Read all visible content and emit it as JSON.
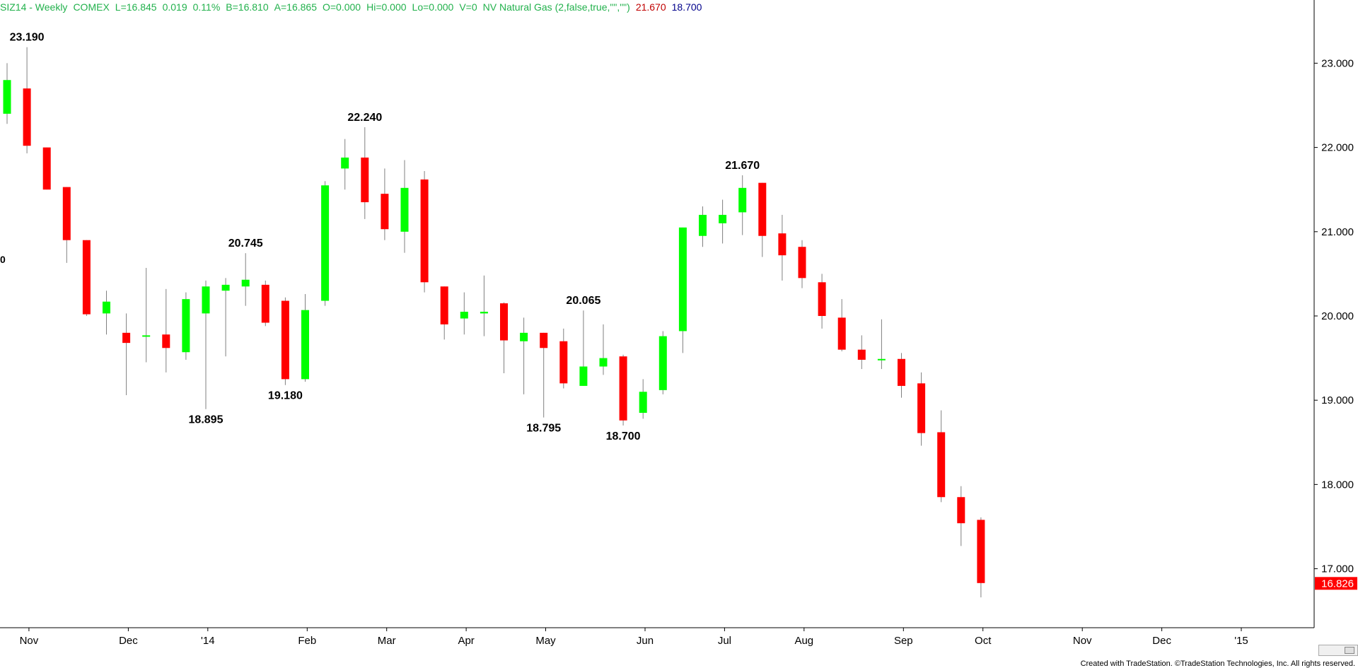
{
  "header": {
    "symbol": "SIZ14 - Weekly",
    "exchange": "COMEX",
    "last": "L=16.845",
    "change": "0.019",
    "change_pct": "0.11%",
    "bid": "B=16.810",
    "ask": "A=16.865",
    "open": "O=0.000",
    "hi": "Hi=0.000",
    "lo": "Lo=0.000",
    "vol": "V=0",
    "indicator": "NV Natural Gas (2,false,true,\"\",\"\")",
    "ind_high": "21.670",
    "ind_low": "18.700",
    "left_edge_label": "0"
  },
  "footer": {
    "text": "Created with TradeStation. ©TradeStation Technologies, Inc. All rights reserved."
  },
  "colors": {
    "up": "#00ff00",
    "down": "#ff0000",
    "wick": "#808080",
    "last_price_bg": "#ff0000"
  },
  "chart_data": {
    "type": "candlestick",
    "ylim": [
      16.3,
      23.75
    ],
    "y_ticks": [
      "23.000",
      "22.000",
      "21.000",
      "20.000",
      "19.000",
      "18.000",
      "17.000"
    ],
    "y_tick_values": [
      23,
      22,
      21,
      20,
      19,
      18,
      17
    ],
    "x_ticks": [
      {
        "label": "Nov",
        "i": 1.1
      },
      {
        "label": "Dec",
        "i": 6.1
      },
      {
        "label": "'14",
        "i": 10.1
      },
      {
        "label": "Feb",
        "i": 15.1
      },
      {
        "label": "Mar",
        "i": 19.1
      },
      {
        "label": "Apr",
        "i": 23.1
      },
      {
        "label": "May",
        "i": 27.1
      },
      {
        "label": "Jun",
        "i": 32.1
      },
      {
        "label": "Jul",
        "i": 36.1
      },
      {
        "label": "Aug",
        "i": 40.1
      },
      {
        "label": "Sep",
        "i": 45.1
      },
      {
        "label": "Oct",
        "i": 49.1
      },
      {
        "label": "Nov",
        "i": 54.1
      },
      {
        "label": "Dec",
        "i": 58.1
      },
      {
        "label": "'15",
        "i": 62.1
      }
    ],
    "candles": [
      {
        "o": 22.4,
        "h": 23.0,
        "l": 22.28,
        "c": 22.8
      },
      {
        "o": 22.7,
        "h": 23.19,
        "l": 21.93,
        "c": 22.02
      },
      {
        "o": 22.0,
        "h": 22.0,
        "l": 21.5,
        "c": 21.5
      },
      {
        "o": 21.53,
        "h": 21.53,
        "l": 20.63,
        "c": 20.9
      },
      {
        "o": 20.9,
        "h": 20.9,
        "l": 20.0,
        "c": 20.02
      },
      {
        "o": 20.03,
        "h": 20.3,
        "l": 19.78,
        "c": 20.17
      },
      {
        "o": 19.8,
        "h": 20.03,
        "l": 19.06,
        "c": 19.68
      },
      {
        "o": 19.77,
        "h": 20.57,
        "l": 19.45,
        "c": 19.77
      },
      {
        "o": 19.78,
        "h": 20.32,
        "l": 19.33,
        "c": 19.62
      },
      {
        "o": 19.57,
        "h": 20.28,
        "l": 19.48,
        "c": 20.2
      },
      {
        "o": 20.03,
        "h": 20.42,
        "l": 18.895,
        "c": 20.35
      },
      {
        "o": 20.3,
        "h": 20.45,
        "l": 19.52,
        "c": 20.37
      },
      {
        "o": 20.35,
        "h": 20.745,
        "l": 20.12,
        "c": 20.43
      },
      {
        "o": 20.37,
        "h": 20.42,
        "l": 19.88,
        "c": 19.92
      },
      {
        "o": 20.18,
        "h": 20.22,
        "l": 19.18,
        "c": 19.25
      },
      {
        "o": 19.25,
        "h": 20.26,
        "l": 19.22,
        "c": 20.07
      },
      {
        "o": 20.18,
        "h": 21.6,
        "l": 20.12,
        "c": 21.55
      },
      {
        "o": 21.75,
        "h": 22.1,
        "l": 21.5,
        "c": 21.88
      },
      {
        "o": 21.88,
        "h": 22.24,
        "l": 21.15,
        "c": 21.35
      },
      {
        "o": 21.45,
        "h": 21.75,
        "l": 20.9,
        "c": 21.03
      },
      {
        "o": 21.0,
        "h": 21.85,
        "l": 20.75,
        "c": 21.52
      },
      {
        "o": 21.62,
        "h": 21.72,
        "l": 20.28,
        "c": 20.4
      },
      {
        "o": 20.35,
        "h": 20.35,
        "l": 19.72,
        "c": 19.9
      },
      {
        "o": 19.97,
        "h": 20.28,
        "l": 19.78,
        "c": 20.05
      },
      {
        "o": 20.03,
        "h": 20.48,
        "l": 19.76,
        "c": 20.05
      },
      {
        "o": 20.15,
        "h": 20.16,
        "l": 19.32,
        "c": 19.71
      },
      {
        "o": 19.7,
        "h": 19.98,
        "l": 19.07,
        "c": 19.8
      },
      {
        "o": 19.8,
        "h": 19.8,
        "l": 18.795,
        "c": 19.62
      },
      {
        "o": 19.7,
        "h": 19.85,
        "l": 19.14,
        "c": 19.2
      },
      {
        "o": 19.17,
        "h": 20.065,
        "l": 19.17,
        "c": 19.4
      },
      {
        "o": 19.4,
        "h": 19.9,
        "l": 19.3,
        "c": 19.5
      },
      {
        "o": 19.52,
        "h": 19.54,
        "l": 18.7,
        "c": 18.76
      },
      {
        "o": 18.85,
        "h": 19.25,
        "l": 18.78,
        "c": 19.1
      },
      {
        "o": 19.12,
        "h": 19.82,
        "l": 19.07,
        "c": 19.76
      },
      {
        "o": 19.82,
        "h": 21.05,
        "l": 19.56,
        "c": 21.05
      },
      {
        "o": 20.95,
        "h": 21.3,
        "l": 20.82,
        "c": 21.2
      },
      {
        "o": 21.1,
        "h": 21.38,
        "l": 20.86,
        "c": 21.2
      },
      {
        "o": 21.23,
        "h": 21.67,
        "l": 20.96,
        "c": 21.52
      },
      {
        "o": 21.58,
        "h": 21.58,
        "l": 20.7,
        "c": 20.95
      },
      {
        "o": 20.98,
        "h": 21.2,
        "l": 20.42,
        "c": 20.72
      },
      {
        "o": 20.82,
        "h": 20.9,
        "l": 20.33,
        "c": 20.45
      },
      {
        "o": 20.4,
        "h": 20.5,
        "l": 19.85,
        "c": 20.0
      },
      {
        "o": 19.98,
        "h": 20.2,
        "l": 19.58,
        "c": 19.6
      },
      {
        "o": 19.6,
        "h": 19.77,
        "l": 19.37,
        "c": 19.48
      },
      {
        "o": 19.49,
        "h": 19.96,
        "l": 19.37,
        "c": 19.49
      },
      {
        "o": 19.49,
        "h": 19.56,
        "l": 19.03,
        "c": 19.17
      },
      {
        "o": 19.2,
        "h": 19.33,
        "l": 18.46,
        "c": 18.61
      },
      {
        "o": 18.62,
        "h": 18.88,
        "l": 17.79,
        "c": 17.85
      },
      {
        "o": 17.85,
        "h": 17.98,
        "l": 17.27,
        "c": 17.54
      },
      {
        "o": 17.58,
        "h": 17.61,
        "l": 16.66,
        "c": 16.83
      }
    ],
    "labels": [
      {
        "text": "23.190",
        "i": 1,
        "pos": "above",
        "value": 23.19
      },
      {
        "text": "20.745",
        "i": 12,
        "pos": "above",
        "value": 20.745
      },
      {
        "text": "18.895",
        "i": 10,
        "pos": "below",
        "value": 18.895
      },
      {
        "text": "19.180",
        "i": 14,
        "pos": "below",
        "value": 19.18
      },
      {
        "text": "22.240",
        "i": 18,
        "pos": "above",
        "value": 22.24
      },
      {
        "text": "20.065",
        "i": 29,
        "pos": "above",
        "value": 20.065
      },
      {
        "text": "18.795",
        "i": 27,
        "pos": "below",
        "value": 18.795
      },
      {
        "text": "18.700",
        "i": 31,
        "pos": "below",
        "value": 18.7
      },
      {
        "text": "21.670",
        "i": 37,
        "pos": "above",
        "value": 21.67
      }
    ],
    "last_price": {
      "text": "16.826",
      "value": 16.826
    }
  }
}
